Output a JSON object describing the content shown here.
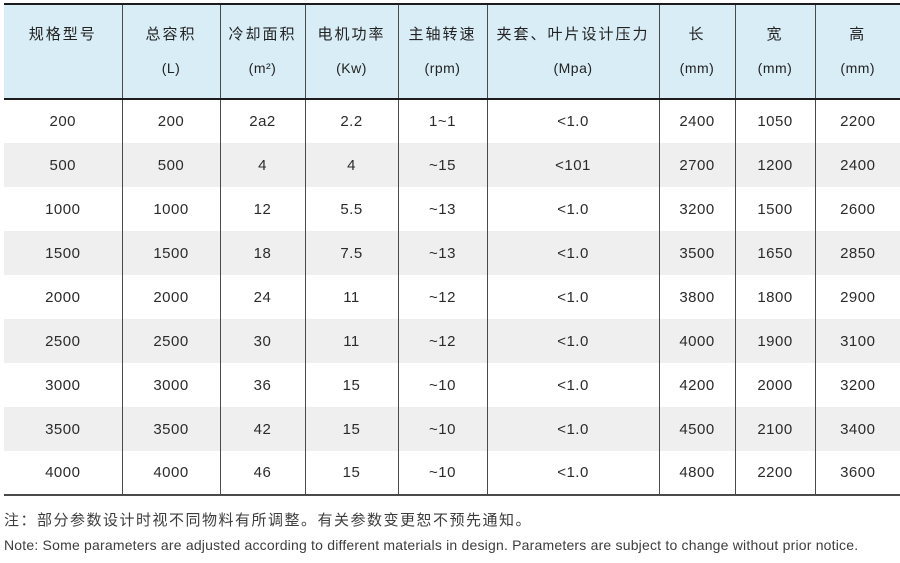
{
  "table": {
    "columns": [
      {
        "title": "规格型号",
        "unit": ""
      },
      {
        "title": "总容积",
        "unit": "(L)"
      },
      {
        "title": "冷却面积",
        "unit": "(m²)"
      },
      {
        "title": "电机功率",
        "unit": "(Kw)"
      },
      {
        "title": "主轴转速",
        "unit": "(rpm)"
      },
      {
        "title": "夹套、叶片设计压力",
        "unit": "(Mpa)"
      },
      {
        "title": "长",
        "unit": "(mm)"
      },
      {
        "title": "宽",
        "unit": "(mm)"
      },
      {
        "title": "高",
        "unit": "(mm)"
      }
    ],
    "rows": [
      [
        "200",
        "200",
        "2a2",
        "2.2",
        "1~1",
        "<1.0",
        "2400",
        "1050",
        "2200"
      ],
      [
        "500",
        "500",
        "4",
        "4",
        "~15",
        "<101",
        "2700",
        "1200",
        "2400"
      ],
      [
        "1000",
        "1000",
        "12",
        "5.5",
        "~13",
        "<1.0",
        "3200",
        "1500",
        "2600"
      ],
      [
        "1500",
        "1500",
        "18",
        "7.5",
        "~13",
        "<1.0",
        "3500",
        "1650",
        "2850"
      ],
      [
        "2000",
        "2000",
        "24",
        "11",
        "~12",
        "<1.0",
        "3800",
        "1800",
        "2900"
      ],
      [
        "2500",
        "2500",
        "30",
        "11",
        "~12",
        "<1.0",
        "4000",
        "1900",
        "3100"
      ],
      [
        "3000",
        "3000",
        "36",
        "15",
        "~10",
        "<1.0",
        "4200",
        "2000",
        "3200"
      ],
      [
        "3500",
        "3500",
        "42",
        "15",
        "~10",
        "<1.0",
        "4500",
        "2100",
        "3400"
      ],
      [
        "4000",
        "4000",
        "46",
        "15",
        "~10",
        "<1.0",
        "4800",
        "2200",
        "3600"
      ]
    ]
  },
  "note": {
    "zh": "注：部分参数设计时视不同物料有所调整。有关参数变更恕不预先通知。",
    "en": "Note: Some parameters are adjusted according to different materials in design. Parameters are subject to change without prior notice."
  },
  "colors": {
    "header_bg": "#d9edf6",
    "stripe_bg": "#efefef",
    "grid_line": "#4a4a4a",
    "frame_line": "#1c1c1c"
  }
}
